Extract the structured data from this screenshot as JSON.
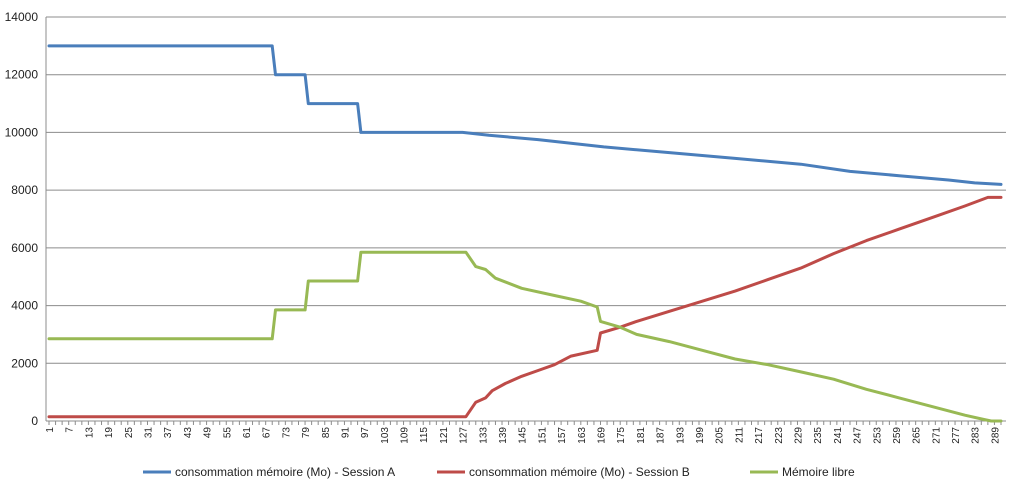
{
  "chart_data": {
    "type": "line",
    "title": "",
    "xlabel": "",
    "ylabel": "",
    "ylim": [
      0,
      14000
    ],
    "xlim": [
      1,
      291
    ],
    "grid": "horizontal",
    "legend_position": "bottom",
    "yticks": [
      0,
      2000,
      4000,
      6000,
      8000,
      10000,
      12000,
      14000
    ],
    "xticks": [
      1,
      7,
      13,
      19,
      25,
      31,
      37,
      43,
      49,
      55,
      61,
      67,
      73,
      79,
      85,
      91,
      97,
      103,
      109,
      115,
      121,
      127,
      133,
      139,
      145,
      151,
      157,
      163,
      169,
      175,
      181,
      187,
      193,
      199,
      205,
      211,
      217,
      223,
      229,
      235,
      241,
      247,
      253,
      259,
      265,
      271,
      277,
      283,
      289
    ],
    "series": [
      {
        "name": "consommation mémoire (Mo) - Session A",
        "color": "#4a7ebb",
        "points": [
          [
            1,
            13000
          ],
          [
            69,
            13000
          ],
          [
            70,
            12000
          ],
          [
            79,
            12000
          ],
          [
            80,
            11000
          ],
          [
            95,
            11000
          ],
          [
            96,
            10000
          ],
          [
            127,
            10000
          ],
          [
            135,
            9900
          ],
          [
            150,
            9750
          ],
          [
            170,
            9500
          ],
          [
            190,
            9300
          ],
          [
            210,
            9100
          ],
          [
            230,
            8900
          ],
          [
            245,
            8650
          ],
          [
            260,
            8500
          ],
          [
            275,
            8350
          ],
          [
            283,
            8250
          ],
          [
            291,
            8200
          ]
        ]
      },
      {
        "name": "consommation mémoire (Mo) - Session B",
        "color": "#be4b48",
        "points": [
          [
            1,
            150
          ],
          [
            128,
            150
          ],
          [
            131,
            650
          ],
          [
            134,
            800
          ],
          [
            136,
            1050
          ],
          [
            140,
            1300
          ],
          [
            145,
            1550
          ],
          [
            150,
            1750
          ],
          [
            155,
            1950
          ],
          [
            160,
            2250
          ],
          [
            168,
            2450
          ],
          [
            169,
            3050
          ],
          [
            175,
            3250
          ],
          [
            180,
            3450
          ],
          [
            190,
            3800
          ],
          [
            200,
            4150
          ],
          [
            210,
            4500
          ],
          [
            220,
            4900
          ],
          [
            230,
            5300
          ],
          [
            240,
            5800
          ],
          [
            250,
            6250
          ],
          [
            260,
            6650
          ],
          [
            270,
            7050
          ],
          [
            280,
            7450
          ],
          [
            287,
            7750
          ],
          [
            291,
            7750
          ]
        ]
      },
      {
        "name": "Mémoire libre",
        "color": "#98b954",
        "points": [
          [
            1,
            2850
          ],
          [
            69,
            2850
          ],
          [
            70,
            3850
          ],
          [
            79,
            3850
          ],
          [
            80,
            4850
          ],
          [
            95,
            4850
          ],
          [
            96,
            5850
          ],
          [
            128,
            5850
          ],
          [
            131,
            5350
          ],
          [
            134,
            5250
          ],
          [
            137,
            4950
          ],
          [
            145,
            4600
          ],
          [
            155,
            4350
          ],
          [
            163,
            4150
          ],
          [
            168,
            3950
          ],
          [
            169,
            3450
          ],
          [
            175,
            3250
          ],
          [
            180,
            3000
          ],
          [
            190,
            2750
          ],
          [
            200,
            2450
          ],
          [
            210,
            2150
          ],
          [
            220,
            1950
          ],
          [
            230,
            1700
          ],
          [
            240,
            1450
          ],
          [
            250,
            1100
          ],
          [
            260,
            800
          ],
          [
            270,
            500
          ],
          [
            280,
            200
          ],
          [
            286,
            50
          ],
          [
            288,
            0
          ],
          [
            291,
            0
          ]
        ]
      }
    ]
  }
}
